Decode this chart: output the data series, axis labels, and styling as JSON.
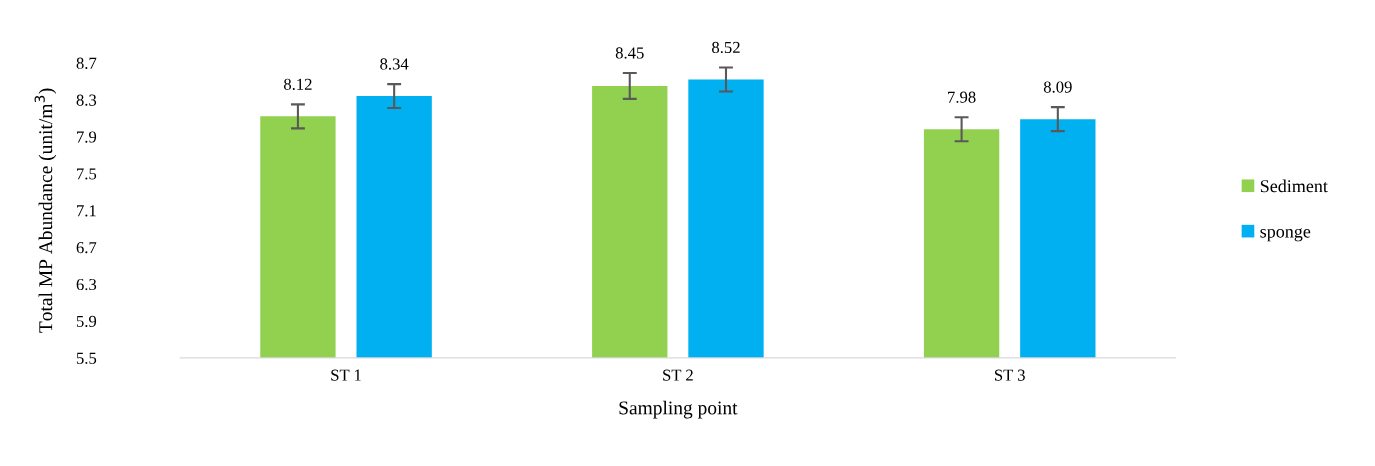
{
  "chart_data": {
    "type": "bar",
    "xlabel": "Sampling point",
    "ylabel": "Total MP Abundance (unit/m$^{3}$)",
    "categories": [
      "ST 1",
      "ST 2",
      "ST 3"
    ],
    "series": [
      {
        "name": "Sediment",
        "color": "#92d050",
        "values": [
          8.12,
          8.45,
          7.98
        ],
        "errors": [
          0.13,
          0.14,
          0.13
        ]
      },
      {
        "name": "sponge",
        "color": "#00b0f0",
        "values": [
          8.34,
          8.52,
          8.09
        ],
        "errors": [
          0.13,
          0.13,
          0.13
        ]
      }
    ],
    "ylim": [
      5.5,
      8.7
    ],
    "yticks": [
      5.5,
      5.9,
      6.3,
      6.7,
      7.1,
      7.5,
      7.9,
      8.3,
      8.7
    ],
    "data_labels": true,
    "grid": false,
    "legend": "right"
  }
}
